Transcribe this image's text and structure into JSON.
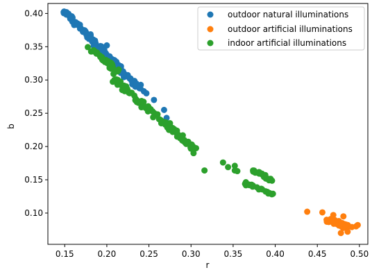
{
  "chart_data": {
    "type": "scatter",
    "xlabel": "r",
    "ylabel": "b",
    "xlim": [
      0.13,
      0.51
    ],
    "ylim": [
      0.053,
      0.415
    ],
    "xticks": [
      "0.15",
      "0.20",
      "0.25",
      "0.30",
      "0.35",
      "0.40",
      "0.45",
      "0.50"
    ],
    "yticks": [
      "0.10",
      "0.15",
      "0.20",
      "0.25",
      "0.30",
      "0.35",
      "0.40"
    ],
    "legend_position": "top-right",
    "grid": false,
    "series": [
      {
        "name": "outdoor natural illuminations",
        "color": "#1f77b4",
        "segments": [
          {
            "x0": 0.15,
            "y0": 0.402,
            "x1": 0.185,
            "y1": 0.358,
            "n": 60,
            "spread": 0.006
          },
          {
            "x0": 0.18,
            "y0": 0.362,
            "x1": 0.215,
            "y1": 0.318,
            "n": 60,
            "spread": 0.007
          },
          {
            "x0": 0.21,
            "y0": 0.322,
            "x1": 0.24,
            "y1": 0.287,
            "n": 35,
            "spread": 0.006
          }
        ],
        "points": [
          [
            0.152,
            0.402
          ],
          [
            0.155,
            0.398
          ],
          [
            0.158,
            0.394
          ],
          [
            0.244,
            0.283
          ],
          [
            0.247,
            0.28
          ],
          [
            0.256,
            0.27
          ],
          [
            0.268,
            0.255
          ],
          [
            0.271,
            0.243
          ],
          [
            0.2,
            0.352
          ],
          [
            0.192,
            0.34
          ]
        ]
      },
      {
        "name": "outdoor artificial illuminations",
        "color": "#ff7f0e",
        "segments": [
          {
            "x0": 0.462,
            "y0": 0.09,
            "x1": 0.484,
            "y1": 0.08,
            "n": 70,
            "spread": 0.006
          }
        ],
        "points": [
          [
            0.438,
            0.102
          ],
          [
            0.456,
            0.101
          ],
          [
            0.469,
            0.097
          ],
          [
            0.481,
            0.095
          ],
          [
            0.478,
            0.07
          ],
          [
            0.486,
            0.072
          ],
          [
            0.496,
            0.08
          ],
          [
            0.498,
            0.082
          ],
          [
            0.491,
            0.079
          ]
        ]
      },
      {
        "name": "indoor artificial illuminations",
        "color": "#2ca02c",
        "segments": [
          {
            "x0": 0.18,
            "y0": 0.35,
            "x1": 0.215,
            "y1": 0.31,
            "n": 35,
            "spread": 0.006
          },
          {
            "x0": 0.21,
            "y0": 0.3,
            "x1": 0.25,
            "y1": 0.255,
            "n": 40,
            "spread": 0.006
          },
          {
            "x0": 0.245,
            "y0": 0.262,
            "x1": 0.305,
            "y1": 0.195,
            "n": 60,
            "spread": 0.006
          },
          {
            "x0": 0.372,
            "y0": 0.165,
            "x1": 0.398,
            "y1": 0.148,
            "n": 22,
            "spread": 0.004
          },
          {
            "x0": 0.364,
            "y0": 0.145,
            "x1": 0.398,
            "y1": 0.128,
            "n": 22,
            "spread": 0.004
          }
        ],
        "points": [
          [
            0.205,
            0.317
          ],
          [
            0.208,
            0.309
          ],
          [
            0.209,
            0.3
          ],
          [
            0.255,
            0.244
          ],
          [
            0.275,
            0.235
          ],
          [
            0.303,
            0.19
          ],
          [
            0.316,
            0.164
          ],
          [
            0.338,
            0.176
          ],
          [
            0.344,
            0.169
          ],
          [
            0.352,
            0.171
          ],
          [
            0.352,
            0.164
          ],
          [
            0.355,
            0.163
          ]
        ]
      }
    ]
  }
}
